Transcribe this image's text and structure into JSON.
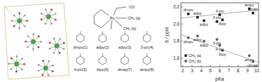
{
  "figure": {
    "complex_labels": [
      "CO",
      "Ru",
      "CH₃ (a)",
      "CH₃ (b)"
    ],
    "ligands": [
      "dmpu(1)",
      "adpy(2)",
      "adpy(3)",
      "3-pic(4)",
      "4-pic(5)",
      "tbpy(6)",
      "dmap(7)",
      "ampy(8)"
    ]
  },
  "chart_data": {
    "type": "scatter",
    "xlabel": "pKa",
    "ylabel": "δ / ppm",
    "xlim": [
      1.8,
      10.2
    ],
    "xticks": [
      2,
      3,
      4,
      5,
      6,
      7,
      8,
      9,
      10
    ],
    "ylim": [
      1.5,
      2.25
    ],
    "yticks": [
      1.6,
      1.8,
      {
        "value": 2,
        "label": "2.0"
      },
      2.2
    ],
    "legend": "lower left",
    "series": [
      {
        "name": "CH₃ (a)",
        "marker": "square",
        "color": "#222222",
        "x": [
          2.6,
          3.6,
          4.3,
          5.7,
          6.0,
          6.3,
          9.2,
          9.6
        ],
        "values": [
          2.12,
          2.08,
          2.04,
          2.03,
          2.11,
          2.05,
          2.18,
          2.13
        ],
        "labels": [
          "dmpu",
          "adpy",
          "adpy",
          "3-pic",
          "4-pic",
          "tbpy",
          "ampy",
          "dmap"
        ]
      },
      {
        "name": "CH₃ (b)",
        "marker": "circle",
        "color": "#555555",
        "x": [
          2.6,
          3.6,
          4.3,
          5.7,
          6.0,
          6.3,
          9.2,
          9.6
        ],
        "values": [
          1.84,
          1.86,
          1.8,
          1.82,
          1.75,
          1.69,
          1.63,
          1.56
        ],
        "labels": [
          "dmpu",
          "adpy",
          "adpy",
          "3-pic",
          "4-pic",
          "tbpy",
          "ampy",
          "dmap"
        ]
      }
    ],
    "trend_lines": [
      {
        "x": [
          1.8,
          10.2
        ],
        "values": [
          2.07,
          2.165
        ]
      },
      {
        "x": [
          1.8,
          10.2
        ],
        "values": [
          1.875,
          1.55
        ]
      }
    ]
  }
}
